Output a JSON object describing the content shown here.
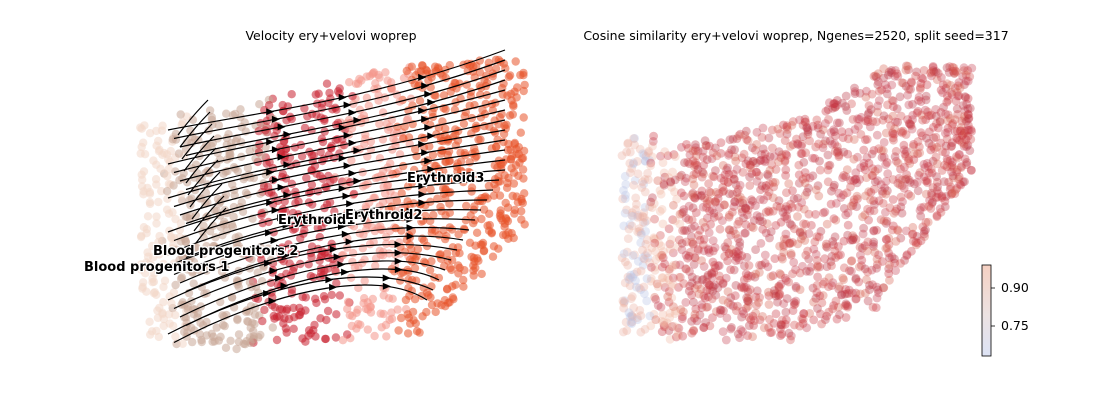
{
  "chart_data": [
    {
      "type": "scatter",
      "title": "Velocity ery+velovi woprep",
      "overlay": "velocity streamlines with arrows",
      "axes_visible": false,
      "cluster_labels": [
        "Blood progenitors 1",
        "Blood progenitors 2",
        "Erythroid1",
        "Erythroid2",
        "Erythroid3"
      ],
      "cluster_colors": [
        "#f3d7c8",
        "#c8a898",
        "#c8202f",
        "#f4958a",
        "#e8542a"
      ]
    },
    {
      "type": "scatter",
      "title": "Cosine similarity ery+velovi woprep, Ngenes=2520, split seed=317",
      "axes_visible": false,
      "colormap": "coolwarm",
      "colorbar": {
        "ticks": [
          0.75,
          0.9
        ],
        "tick_labels": [
          "0.75",
          "0.90"
        ],
        "range": [
          0.7,
          0.94
        ]
      }
    }
  ]
}
